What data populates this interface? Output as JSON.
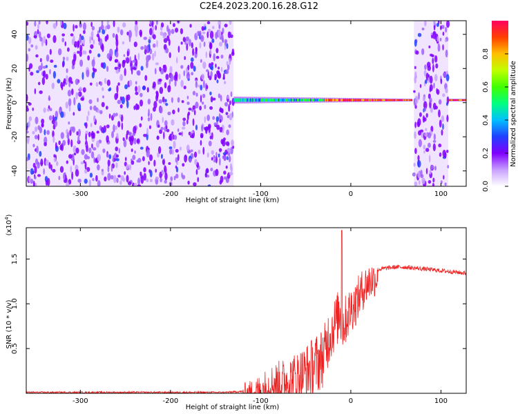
{
  "title": "C2E4.2023.200.16.28.G12",
  "chart_data": [
    {
      "type": "heatmap",
      "xlabel": "Height of straight line (km)",
      "ylabel": "Frequency (Hz)",
      "xlim": [
        -360,
        128
      ],
      "ylim": [
        -49,
        48
      ],
      "x_ticks": [
        -300,
        -200,
        -100,
        0,
        100
      ],
      "y_ticks": [
        -40,
        -20,
        0,
        20,
        40
      ],
      "colorbar": {
        "label": "Normalized spectral amplitude",
        "range": [
          0.0,
          1.0
        ],
        "ticks": [
          "0.0",
          "0.2",
          "0.4",
          "0.6",
          "0.8"
        ],
        "colors": [
          "#ffffff",
          "#c8a0ff",
          "#8000ff",
          "#2040ff",
          "#00c0ff",
          "#00ff80",
          "#40ff00",
          "#c0ff00",
          "#ffc000",
          "#ff4000",
          "#ff0060"
        ]
      },
      "regions": [
        {
          "name": "noise",
          "x_range": [
            -360,
            -130
          ],
          "amplitude": 0.15
        },
        {
          "name": "signal",
          "x_range": [
            -130,
            68
          ],
          "amplitude": 0.8
        },
        {
          "name": "noise",
          "x_range": [
            70,
            108
          ],
          "amplitude": 0.15
        },
        {
          "name": "signal",
          "x_range": [
            108,
            128
          ],
          "amplitude": 0.85
        }
      ]
    },
    {
      "type": "line",
      "xlabel": "Height of straight line (km)",
      "ylabel": "SNR (10 * v/v)",
      "y_multiplier": "(x10",
      "y_multiplier_exp": "4",
      "y_multiplier_close": ")",
      "xlim": [
        -360,
        128
      ],
      "ylim": [
        0.0,
        1.85
      ],
      "x_ticks": [
        -300,
        -200,
        -100,
        0,
        100
      ],
      "y_ticks": [
        0.5,
        1.0,
        1.5
      ],
      "y_tick_labels": [
        "0.5",
        "1.0",
        "1.5"
      ],
      "color": "#ee2222",
      "envelope": {
        "x": [
          -360,
          -140,
          -120,
          -110,
          -100,
          -90,
          -80,
          -70,
          -60,
          -50,
          -40,
          -30,
          -25,
          -20,
          -15,
          -12,
          -10,
          -5,
          0,
          5,
          10,
          15,
          20,
          30,
          40,
          50,
          60,
          70,
          80,
          90,
          100,
          110,
          120,
          128
        ],
        "y": [
          0.01,
          0.01,
          0.02,
          0.05,
          0.1,
          0.18,
          0.22,
          0.25,
          0.3,
          0.36,
          0.45,
          0.55,
          0.75,
          0.85,
          0.95,
          1.05,
          0.85,
          0.95,
          1.05,
          1.1,
          1.2,
          1.28,
          1.33,
          1.38,
          1.4,
          1.41,
          1.41,
          1.4,
          1.39,
          1.38,
          1.37,
          1.36,
          1.35,
          1.34
        ]
      },
      "spike": {
        "x": -10,
        "y": 1.82
      }
    }
  ]
}
